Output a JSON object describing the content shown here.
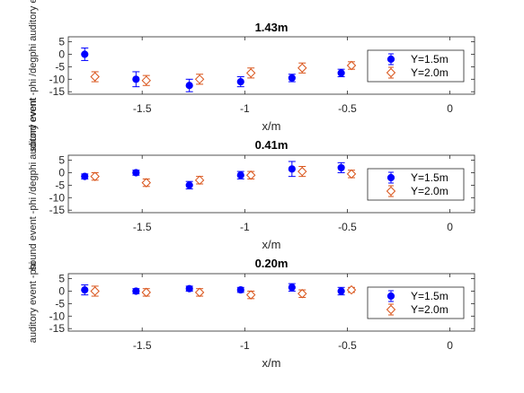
{
  "chart_data": [
    {
      "type": "scatter",
      "title": "1.43m",
      "xlabel": "x/m",
      "ylabel": "sound event -phi /degphi auditory event",
      "xlim": [
        -1.86,
        0.12
      ],
      "ylim": [
        -16,
        7
      ],
      "xticks": [
        -1.5,
        -1,
        -0.5,
        0
      ],
      "yticks": [
        5,
        0,
        -5,
        -10,
        -15
      ],
      "legend": "right",
      "series": [
        {
          "name": "Y=1.5m",
          "color": "#0000ff",
          "marker": "filled-circle",
          "x": [
            -1.78,
            -1.53,
            -1.27,
            -1.02,
            -0.77,
            -0.53
          ],
          "y": [
            0,
            -10,
            -12.5,
            -11,
            -9.5,
            -7.5
          ],
          "err": [
            2.5,
            3,
            2.5,
            2,
            1.5,
            1.5
          ]
        },
        {
          "name": "Y=2.0m",
          "color": "#d95319",
          "marker": "open-diamond",
          "x": [
            -1.73,
            -1.48,
            -1.22,
            -0.97,
            -0.72,
            -0.48
          ],
          "y": [
            -9,
            -10.5,
            -10,
            -7.5,
            -5.5,
            -4.5
          ],
          "err": [
            2,
            2,
            2,
            2,
            2,
            1.5
          ]
        }
      ]
    },
    {
      "type": "scatter",
      "title": "0.41m",
      "xlabel": "x/m",
      "ylabel": "sound event -phi /degphi auditory event",
      "xlim": [
        -1.86,
        0.12
      ],
      "ylim": [
        -16,
        7
      ],
      "xticks": [
        -1.5,
        -1,
        -0.5,
        0
      ],
      "yticks": [
        5,
        0,
        -5,
        -10,
        -15
      ],
      "legend": "right",
      "series": [
        {
          "name": "Y=1.5m",
          "color": "#0000ff",
          "marker": "filled-circle",
          "x": [
            -1.78,
            -1.53,
            -1.27,
            -1.02,
            -0.77,
            -0.53
          ],
          "y": [
            -1.5,
            0,
            -5,
            -1,
            1.5,
            2
          ],
          "err": [
            1,
            1,
            1.5,
            1.5,
            3,
            2
          ]
        },
        {
          "name": "Y=2.0m",
          "color": "#d95319",
          "marker": "open-diamond",
          "x": [
            -1.73,
            -1.48,
            -1.22,
            -0.97,
            -0.72,
            -0.48
          ],
          "y": [
            -1.5,
            -4,
            -3,
            -1,
            0.5,
            -0.5
          ],
          "err": [
            1.5,
            1.5,
            1.5,
            1.5,
            2,
            1.5
          ]
        }
      ]
    },
    {
      "type": "scatter",
      "title": "0.20m",
      "xlabel": "x/m",
      "ylabel": "auditory event -phi",
      "xlim": [
        -1.86,
        0.12
      ],
      "ylim": [
        -16,
        7
      ],
      "xticks": [
        -1.5,
        -1,
        -0.5,
        0
      ],
      "yticks": [
        5,
        0,
        -5,
        -10,
        -15
      ],
      "legend": "right",
      "series": [
        {
          "name": "Y=1.5m",
          "color": "#0000ff",
          "marker": "filled-circle",
          "x": [
            -1.78,
            -1.53,
            -1.27,
            -1.02,
            -0.77,
            -0.53
          ],
          "y": [
            0.5,
            0,
            1,
            0.5,
            1.5,
            0
          ],
          "err": [
            2,
            1,
            1,
            1,
            1.5,
            1.5
          ]
        },
        {
          "name": "Y=2.0m",
          "color": "#d95319",
          "marker": "open-diamond",
          "x": [
            -1.73,
            -1.48,
            -1.22,
            -0.97,
            -0.72,
            -0.48
          ],
          "y": [
            0,
            -0.5,
            -0.5,
            -1.5,
            -1,
            0.5
          ],
          "err": [
            2,
            1.5,
            1.5,
            1.5,
            1.5,
            1
          ]
        }
      ]
    }
  ]
}
